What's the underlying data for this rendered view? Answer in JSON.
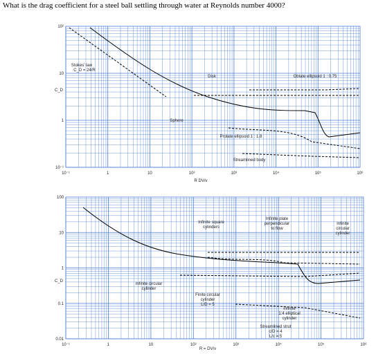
{
  "question": "What is the drag coefficient for a steel ball settling through water at Reynolds number 4000?",
  "figure_top": {
    "y_label": "C_D",
    "x_label": "R   DV/ν",
    "y_ticks": [
      "10²",
      "10",
      "1",
      "10⁻¹"
    ],
    "x_ticks": [
      "10⁻¹",
      "1",
      "10",
      "10²",
      "10³",
      "10⁴",
      "10⁵",
      "10⁶"
    ],
    "annotations": [
      [
        "Stokes' law"
      ],
      [
        "C_D = 24/R"
      ],
      [
        "Disk"
      ],
      [
        "Oblate ellipsoid 1 : 0.75"
      ],
      [
        "Sphere"
      ],
      [
        "Prolate ellipsoid 1 : 1.8"
      ],
      [
        "Streamlined body"
      ]
    ]
  },
  "figure_bottom": {
    "y_label": "C_D",
    "x_label": "R = DV/ν",
    "y_ticks": [
      "100",
      "10",
      "1",
      "0.1",
      "0.01"
    ],
    "x_ticks": [
      "10⁻¹",
      "1",
      "10",
      "10²",
      "10³",
      "10⁴",
      "10⁵",
      "10⁶"
    ],
    "annotations": [
      [
        "Infinite square",
        "cylinders"
      ],
      [
        "Infinite plate",
        "perpendicular",
        "to flow"
      ],
      [
        "Infinite",
        "circular",
        "cylinder"
      ],
      [
        "Infinite circular",
        "cylinder"
      ],
      [
        "Finite circular",
        "cylinder",
        "L/D = 5"
      ],
      [
        "Infinite",
        "1:4 elliptical",
        "cylinder"
      ],
      [
        "Streamlined strut",
        "c/D = 4",
        "L/c = 5"
      ]
    ]
  }
}
